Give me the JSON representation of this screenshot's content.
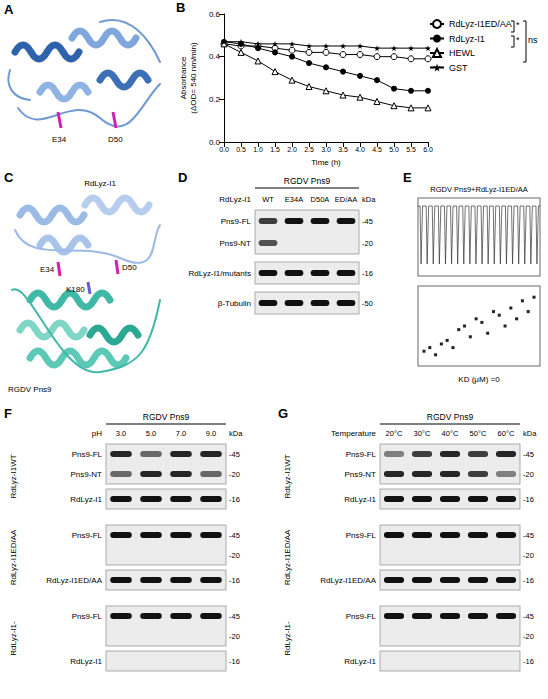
{
  "chart_data": {
    "letter": "B",
    "type": "line",
    "xlabel": "Time (h)",
    "ylabel": [
      "Absorbance",
      "(ΔOD= 540 nm/min)"
    ],
    "x": [
      0,
      0.5,
      1,
      1.5,
      2,
      2.5,
      3,
      3.5,
      4,
      4.5,
      5,
      5.5,
      6
    ],
    "xlim": [
      0,
      6
    ],
    "xticks": [
      {
        "value": 0,
        "label": "0.0"
      },
      0.5,
      {
        "value": 1,
        "label": "1.0"
      },
      1.5,
      {
        "value": 2,
        "label": "2.0"
      },
      2.5,
      {
        "value": 3,
        "label": "3.0"
      },
      3.5,
      {
        "value": 4,
        "label": "4.0"
      },
      4.5,
      {
        "value": 5,
        "label": "5.0"
      },
      5.5,
      {
        "value": 6,
        "label": "6.0"
      }
    ],
    "ylim": [
      0,
      0.6
    ],
    "yticks": [
      {
        "value": 0,
        "label": "0.0"
      },
      0.2,
      0.4,
      0.6
    ],
    "grid": false,
    "legend": "right",
    "series": [
      {
        "name": "RdLyz-I1ED/AA",
        "color": "#000000",
        "marker": "circle-open",
        "line_style": "solid",
        "values": [
          0.46,
          0.45,
          0.45,
          0.44,
          0.43,
          0.42,
          0.42,
          0.41,
          0.41,
          0.4,
          0.4,
          0.39,
          0.39
        ]
      },
      {
        "name": "RdLyz-I1",
        "color": "#000000",
        "marker": "circle",
        "line_style": "solid",
        "values": [
          0.47,
          0.46,
          0.44,
          0.42,
          0.4,
          0.37,
          0.35,
          0.33,
          0.31,
          0.29,
          0.25,
          0.24,
          0.24
        ]
      },
      {
        "name": "HEWL",
        "color": "#000000",
        "marker": "triangle-open",
        "line_style": "solid",
        "values": [
          0.46,
          0.42,
          0.38,
          0.33,
          0.29,
          0.26,
          0.24,
          0.22,
          0.21,
          0.19,
          0.17,
          0.16,
          0.16
        ]
      },
      {
        "name": "GST",
        "color": "#000000",
        "marker": "star",
        "line_style": "solid",
        "values": [
          0.47,
          0.47,
          0.46,
          0.46,
          0.46,
          0.45,
          0.45,
          0.45,
          0.45,
          0.44,
          0.44,
          0.44,
          0.44
        ]
      }
    ],
    "annotations": [
      {
        "text": "*",
        "from": "RdLyz-I1ED/AA",
        "to": "RdLyz-I1"
      },
      {
        "text": "*",
        "from": "RdLyz-I1",
        "to": "HEWL"
      },
      {
        "text": "ns",
        "from": "RdLyz-I1ED/AA",
        "to": "GST"
      }
    ]
  },
  "panels": {
    "A": {
      "letter": "A",
      "residues": [
        "E34",
        "D50"
      ]
    },
    "C": {
      "letter": "C",
      "top_label": "RdLyz-I1",
      "bottom_label": "RGDV Pns9",
      "residues": [
        "E34",
        "K180",
        "D50"
      ]
    },
    "D": {
      "letter": "D",
      "header": "RGDV Pns9",
      "axis_title": "RdLyz-I1",
      "kda_unit": "kDa",
      "lanes": [
        "WT",
        "E34A",
        "D50A",
        "ED/AA"
      ],
      "groups": [
        {
          "label": null,
          "blots": [
            [
              {
                "label": "Pns9-FL",
                "kda": "-45",
                "bands": [
                  0.8,
                  1,
                  1,
                  1
                ]
              },
              {
                "label": "Pns9-NT",
                "kda": "-20",
                "bands": [
                  0.7,
                  0,
                  0,
                  0
                ]
              }
            ],
            [
              {
                "label": "RdLyz-I1/mutants",
                "kda": "-16",
                "bands": [
                  1,
                  1,
                  1,
                  1
                ]
              }
            ],
            [
              {
                "label": "β-Tubulin",
                "kda": "-50",
                "bands": [
                  1,
                  1,
                  1,
                  1
                ]
              }
            ]
          ]
        }
      ]
    },
    "E": {
      "letter": "E",
      "title": "RGDV Pns9+RdLyz-I1ED/AA",
      "injections": 20,
      "points": [
        0.15,
        0.2,
        0.1,
        0.25,
        0.3,
        0.2,
        0.45,
        0.5,
        0.35,
        0.6,
        0.55,
        0.4,
        0.7,
        0.65,
        0.5,
        0.75,
        0.6,
        0.85,
        0.7,
        0.9
      ],
      "result": "KD (μM) =0"
    },
    "F": {
      "letter": "F",
      "header": "RGDV Pns9",
      "axis_title": "pH",
      "kda_unit": "kDa",
      "lanes": [
        "3.0",
        "5.0",
        "7.0",
        "9.0"
      ],
      "groups": [
        {
          "label": "RdLyz-I1WT",
          "blots": [
            [
              {
                "label": "Pns9-FL",
                "kda": "-45",
                "bands": [
                  0.9,
                  0.6,
                  0.9,
                  0.9
                ]
              },
              {
                "label": "Pns9-NT",
                "kda": "-20",
                "bands": [
                  0.6,
                  0.9,
                  0.9,
                  0.6
                ]
              }
            ],
            [
              {
                "label": "RdLyz-I1",
                "kda": "-16",
                "bands": [
                  1,
                  1,
                  1,
                  1
                ]
              }
            ]
          ]
        },
        {
          "label": "RdLyz-I1ED/AA",
          "blots": [
            [
              {
                "label": "Pns9-FL",
                "kda": "-45",
                "bands": [
                  1,
                  1,
                  1,
                  1
                ]
              },
              {
                "label": null,
                "kda": "-20",
                "bands": [
                  0,
                  0,
                  0,
                  0
                ]
              }
            ],
            [
              {
                "label": "RdLyz-I1ED/AA",
                "kda": "-16",
                "bands": [
                  1,
                  1,
                  1,
                  1
                ]
              }
            ]
          ]
        },
        {
          "label": "RdLyz-I1-",
          "blots": [
            [
              {
                "label": "Pns9-FL",
                "kda": "-45",
                "bands": [
                  1,
                  1,
                  1,
                  1
                ]
              },
              {
                "label": null,
                "kda": "-20",
                "bands": [
                  0,
                  0,
                  0,
                  0
                ]
              }
            ],
            [
              {
                "label": "RdLyz-I1",
                "kda": "-16",
                "bands": [
                  0,
                  0,
                  0,
                  0
                ]
              }
            ]
          ]
        }
      ]
    },
    "G": {
      "letter": "G",
      "header": "RGDV Pns9",
      "axis_title": "Temperature",
      "kda_unit": "kDa",
      "lanes": [
        "20°C",
        "30°C",
        "40°C",
        "50°C",
        "60°C"
      ],
      "groups": [
        {
          "label": "RdLyz-I1WT",
          "blots": [
            [
              {
                "label": "Pns9-FL",
                "kda": "-45",
                "bands": [
                  0.5,
                  0.8,
                  0.9,
                  0.8,
                  0.9
                ]
              },
              {
                "label": "Pns9-NT",
                "kda": "-20",
                "bands": [
                  0.9,
                  0.9,
                  0.9,
                  0.8,
                  0.5
                ]
              }
            ],
            [
              {
                "label": "RdLyz-I1",
                "kda": "-16",
                "bands": [
                  1,
                  1,
                  1,
                  1,
                  1
                ]
              }
            ]
          ]
        },
        {
          "label": "RdLyz-I1ED/AA",
          "blots": [
            [
              {
                "label": "Pns9-FL",
                "kda": "-45",
                "bands": [
                  1,
                  1,
                  1,
                  1,
                  1
                ]
              },
              {
                "label": null,
                "kda": "-20",
                "bands": [
                  0,
                  0,
                  0,
                  0,
                  0
                ]
              }
            ],
            [
              {
                "label": "RdLyz-I1ED/AA",
                "kda": "-16",
                "bands": [
                  1,
                  1,
                  1,
                  1,
                  1
                ]
              }
            ]
          ]
        },
        {
          "label": "RdLyz-I1-",
          "blots": [
            [
              {
                "label": "Pns9-FL",
                "kda": "-45",
                "bands": [
                  1,
                  1,
                  1,
                  1,
                  1
                ]
              },
              {
                "label": null,
                "kda": "-20",
                "bands": [
                  0,
                  0,
                  0,
                  0,
                  0
                ]
              }
            ],
            [
              {
                "label": "RdLyz-I1",
                "kda": "-16",
                "bands": [
                  0,
                  0,
                  0,
                  0,
                  0
                ]
              }
            ]
          ]
        }
      ]
    }
  }
}
